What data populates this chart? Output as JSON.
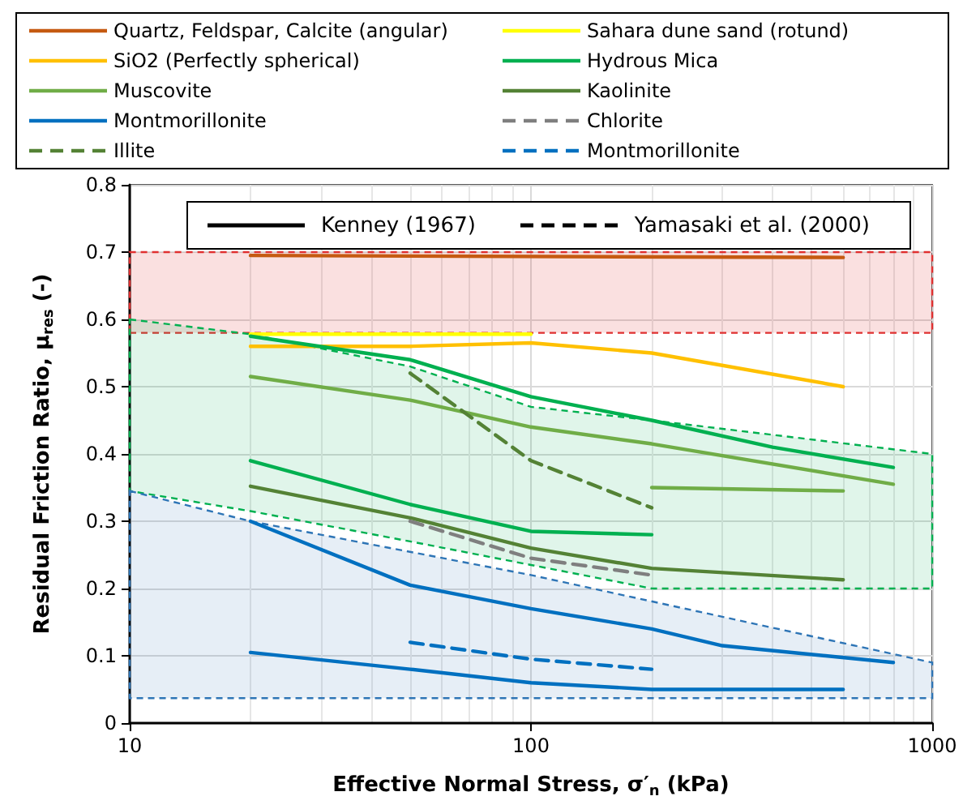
{
  "chart_data": {
    "type": "line",
    "xlabel": "Effective Normal Stress, σ′$_{n}$ (kPa)",
    "ylabel": "Residual Friction Ratio, μ$_{res}$ (-)",
    "log": "x",
    "xlim": [
      10,
      1000
    ],
    "xticks": [
      10,
      100,
      1000
    ],
    "ylim": [
      0,
      0.8
    ],
    "yticks": [
      0,
      0.1,
      0.2,
      0.3,
      0.4,
      0.5,
      0.6,
      0.7,
      0.8
    ],
    "grid": true,
    "legend": "top",
    "marker": "none",
    "bands": [
      {
        "axis": "y",
        "from": 0.58,
        "to": 0.7,
        "color": "#e03030"
      }
    ],
    "series": [
      {
        "type": "area",
        "color": "#00b050",
        "line_style": "dashed",
        "x": [
          10,
          20,
          50,
          100,
          200,
          1000
        ],
        "values": [
          null,
          null,
          null,
          null,
          null,
          null
        ],
        "upper": [
          0.6,
          0.578,
          0.53,
          0.47,
          0.45,
          0.4
        ],
        "lower": [
          0.345,
          0.315,
          0.27,
          0.235,
          0.2,
          0.2
        ]
      },
      {
        "type": "area",
        "color": "#2e75b6",
        "line_style": "dashed",
        "x": [
          10,
          20,
          100,
          1000
        ],
        "values": [
          null,
          null,
          null,
          null
        ],
        "upper": [
          0.345,
          0.3,
          0.22,
          0.09
        ],
        "lower": [
          0.037,
          0.037,
          0.037,
          0.037
        ]
      },
      {
        "name": "Quartz, Feldspar, Calcite (angular)",
        "color": "#c55a11",
        "line_style": "solid",
        "x": [
          20,
          600
        ],
        "values": [
          0.695,
          0.692
        ]
      },
      {
        "name": "Sahara dune sand (rotund)",
        "color": "#ffff00",
        "line_style": "solid",
        "x": [
          20,
          100
        ],
        "values": [
          0.578,
          0.578
        ]
      },
      {
        "name": "SiO2 (Perfectly spherical)",
        "color": "#ffc000",
        "line_style": "solid",
        "x": [
          20,
          50,
          100,
          200,
          600
        ],
        "values": [
          0.56,
          0.56,
          0.565,
          0.55,
          0.5
        ]
      },
      {
        "name": "Hydrous Mica",
        "color": "#00b050",
        "line_style": "solid",
        "x": [
          20,
          50,
          100,
          200,
          400,
          800
        ],
        "values": [
          0.575,
          0.54,
          0.485,
          0.45,
          0.41,
          0.38
        ]
      },
      {
        "name": "Muscovite",
        "color": "#70ad47",
        "line_style": "solid",
        "x": [
          20,
          50,
          100,
          200,
          800
        ],
        "values": [
          0.515,
          0.48,
          0.44,
          0.415,
          0.355
        ]
      },
      {
        "name": "Kaolinite",
        "color": "#548235",
        "line_style": "solid",
        "x": [
          20,
          50,
          100,
          200,
          600
        ],
        "values": [
          0.352,
          0.305,
          0.26,
          0.23,
          0.213
        ]
      },
      {
        "name": "Montmorillonite",
        "color": "#0070c0",
        "line_style": "solid",
        "x": [
          20,
          50,
          100,
          200,
          300,
          800
        ],
        "values": [
          0.3,
          0.205,
          0.17,
          0.14,
          0.115,
          0.09
        ]
      },
      {
        "name": "Chlorite",
        "color": "#7f7f7f",
        "line_style": "dashed",
        "x": [
          50,
          100,
          200
        ],
        "values": [
          0.3,
          0.245,
          0.22
        ]
      },
      {
        "name": "Illite",
        "color": "#548235",
        "line_style": "dashed",
        "x": [
          50,
          100,
          200
        ],
        "values": [
          0.52,
          0.39,
          0.32
        ]
      },
      {
        "name": "Montmorillonite",
        "color": "#0070c0",
        "line_style": "dashed",
        "x": [
          50,
          100,
          200
        ],
        "values": [
          0.12,
          0.095,
          0.08
        ]
      },
      {
        "color": "#00b050",
        "line_style": "solid",
        "x": [
          20,
          50,
          100,
          200
        ],
        "values": [
          0.39,
          0.325,
          0.285,
          0.28
        ]
      },
      {
        "color": "#70ad47",
        "line_style": "solid",
        "x": [
          200,
          600
        ],
        "values": [
          0.35,
          0.345
        ]
      },
      {
        "color": "#0070c0",
        "line_style": "solid",
        "x": [
          20,
          50,
          100,
          200,
          600
        ],
        "values": [
          0.105,
          0.08,
          0.06,
          0.05,
          0.05
        ]
      },
      {
        "name": "Kenney (1967)",
        "color": "#000000",
        "line_style": "solid"
      },
      {
        "name": "Yamasaki et al. (2000)",
        "color": "#000000",
        "line_style": "dashed"
      }
    ]
  }
}
